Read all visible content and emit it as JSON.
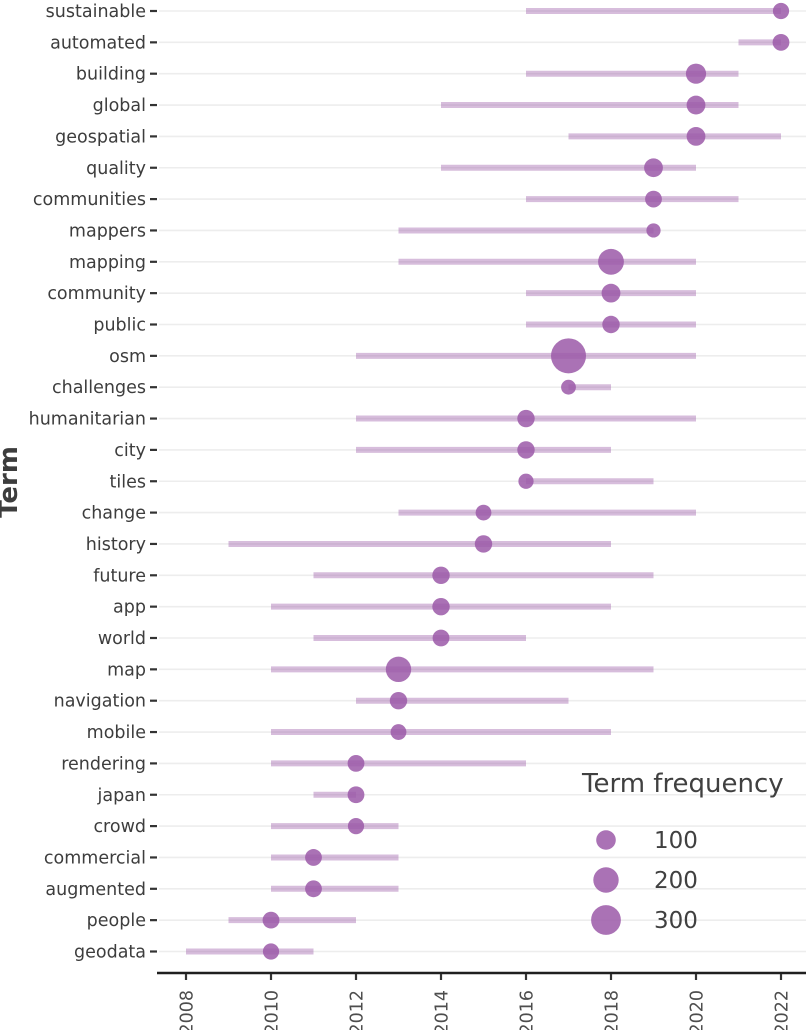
{
  "chart_data": {
    "type": "scatter",
    "title": "",
    "xlabel": "",
    "ylabel": "Term",
    "x_ticks": [
      2008,
      2010,
      2012,
      2014,
      2016,
      2018,
      2020,
      2022
    ],
    "x_domain": [
      2008,
      2022
    ],
    "grid": "horizontal-only",
    "legend": {
      "title": "Term frequency",
      "position": "bottom-right",
      "sizes": [
        100,
        200,
        300
      ]
    },
    "terms": [
      {
        "term": "sustainable",
        "start": 2016,
        "end": 2022,
        "peak": 2022,
        "frequency": 58
      },
      {
        "term": "automated",
        "start": 2021,
        "end": 2022,
        "peak": 2022,
        "frequency": 65
      },
      {
        "term": "building",
        "start": 2016,
        "end": 2021,
        "peak": 2020,
        "frequency": 110
      },
      {
        "term": "global",
        "start": 2014,
        "end": 2021,
        "peak": 2020,
        "frequency": 90
      },
      {
        "term": "geospatial",
        "start": 2017,
        "end": 2022,
        "peak": 2020,
        "frequency": 90
      },
      {
        "term": "quality",
        "start": 2014,
        "end": 2020,
        "peak": 2019,
        "frequency": 90
      },
      {
        "term": "communities",
        "start": 2016,
        "end": 2021,
        "peak": 2019,
        "frequency": 65
      },
      {
        "term": "mappers",
        "start": 2013,
        "end": 2019,
        "peak": 2019,
        "frequency": 38
      },
      {
        "term": "mapping",
        "start": 2013,
        "end": 2020,
        "peak": 2018,
        "frequency": 210
      },
      {
        "term": "community",
        "start": 2016,
        "end": 2020,
        "peak": 2018,
        "frequency": 90
      },
      {
        "term": "public",
        "start": 2016,
        "end": 2020,
        "peak": 2018,
        "frequency": 70
      },
      {
        "term": "osm",
        "start": 2012,
        "end": 2020,
        "peak": 2017,
        "frequency": 440
      },
      {
        "term": "challenges",
        "start": 2017,
        "end": 2018,
        "peak": 2017,
        "frequency": 43
      },
      {
        "term": "humanitarian",
        "start": 2012,
        "end": 2020,
        "peak": 2016,
        "frequency": 70
      },
      {
        "term": "city",
        "start": 2012,
        "end": 2018,
        "peak": 2016,
        "frequency": 70
      },
      {
        "term": "tiles",
        "start": 2016,
        "end": 2019,
        "peak": 2016,
        "frequency": 47
      },
      {
        "term": "change",
        "start": 2013,
        "end": 2020,
        "peak": 2015,
        "frequency": 53
      },
      {
        "term": "history",
        "start": 2009,
        "end": 2018,
        "peak": 2015,
        "frequency": 70
      },
      {
        "term": "future",
        "start": 2011,
        "end": 2019,
        "peak": 2014,
        "frequency": 70
      },
      {
        "term": "app",
        "start": 2010,
        "end": 2018,
        "peak": 2014,
        "frequency": 70
      },
      {
        "term": "world",
        "start": 2011,
        "end": 2016,
        "peak": 2014,
        "frequency": 63
      },
      {
        "term": "map",
        "start": 2010,
        "end": 2019,
        "peak": 2013,
        "frequency": 200
      },
      {
        "term": "navigation",
        "start": 2012,
        "end": 2017,
        "peak": 2013,
        "frequency": 70
      },
      {
        "term": "mobile",
        "start": 2010,
        "end": 2018,
        "peak": 2013,
        "frequency": 53
      },
      {
        "term": "rendering",
        "start": 2010,
        "end": 2016,
        "peak": 2012,
        "frequency": 63
      },
      {
        "term": "japan",
        "start": 2011,
        "end": 2012,
        "peak": 2012,
        "frequency": 63
      },
      {
        "term": "crowd",
        "start": 2010,
        "end": 2013,
        "peak": 2012,
        "frequency": 58
      },
      {
        "term": "commercial",
        "start": 2010,
        "end": 2013,
        "peak": 2011,
        "frequency": 63
      },
      {
        "term": "augmented",
        "start": 2010,
        "end": 2013,
        "peak": 2011,
        "frequency": 63
      },
      {
        "term": "people",
        "start": 2009,
        "end": 2012,
        "peak": 2010,
        "frequency": 63
      },
      {
        "term": "geodata",
        "start": 2008,
        "end": 2011,
        "peak": 2010,
        "frequency": 58
      }
    ],
    "colors": {
      "dot": "#9b59a8",
      "dot_opacity": 0.85,
      "range_line": "#9b59a8",
      "range_line_opacity": 0.4,
      "grid_line": "#ededed",
      "axis_line": "#1f1f1f",
      "tick_mark": "#333333",
      "tick_text": "#4d4d4d",
      "axis_label_text": "#3d3d3d",
      "legend_text": "#404040"
    }
  }
}
